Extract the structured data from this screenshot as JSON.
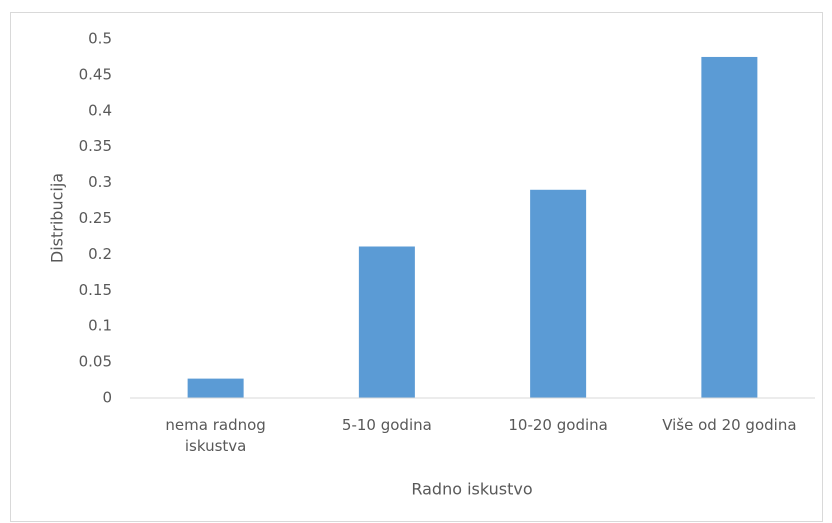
{
  "chart_data": {
    "type": "bar",
    "categories": [
      "nema radnog iskustva",
      "5-10 godina",
      "10-20 godina",
      "Više od 20 godina"
    ],
    "values": [
      0.027,
      0.211,
      0.29,
      0.475
    ],
    "color": "#5b9bd5",
    "xlabel": "Radno iskustvo",
    "ylabel": "Distribucija",
    "ylim": [
      0,
      0.5
    ],
    "yticks": [
      0,
      0.05,
      0.1,
      0.15,
      0.2,
      0.25,
      0.3,
      0.35,
      0.4,
      0.45,
      0.5
    ],
    "grid": false
  }
}
